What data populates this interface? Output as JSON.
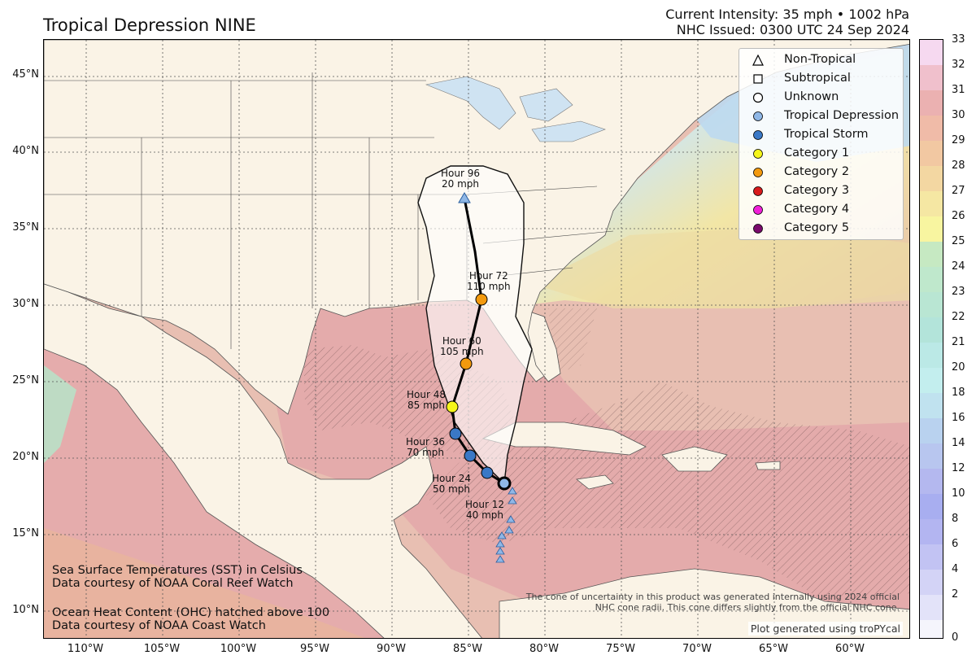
{
  "header": {
    "title": "Tropical Depression NINE",
    "intensity": "Current Intensity: 35 mph • 1002 hPa",
    "issued": "NHC Issued: 0300 UTC 24 Sep 2024"
  },
  "map": {
    "lat_labels": [
      "45°N",
      "40°N",
      "35°N",
      "30°N",
      "25°N",
      "20°N",
      "15°N",
      "10°N"
    ],
    "lon_labels": [
      "110°W",
      "105°W",
      "100°W",
      "95°W",
      "90°W",
      "85°W",
      "80°W",
      "75°W",
      "70°W",
      "65°W",
      "60°W"
    ],
    "land_color": "#faf3e6",
    "ocean_warm_color": "#e7b0ad",
    "track_forecast": [
      {
        "hour": "Hour 12",
        "wind": "40 mph",
        "category": "Tropical Storm"
      },
      {
        "hour": "Hour 24",
        "wind": "50 mph",
        "category": "Tropical Storm"
      },
      {
        "hour": "Hour 36",
        "wind": "70 mph",
        "category": "Tropical Storm"
      },
      {
        "hour": "Hour 48",
        "wind": "85 mph",
        "category": "Category 1"
      },
      {
        "hour": "Hour 60",
        "wind": "105 mph",
        "category": "Category 2"
      },
      {
        "hour": "Hour 72",
        "wind": "110 mph",
        "category": "Category 2"
      },
      {
        "hour": "Hour 96",
        "wind": "20 mph",
        "category": "Non-Tropical"
      }
    ]
  },
  "legend": {
    "items": [
      {
        "label": "Non-Tropical",
        "icon": "triangle-outline-icon",
        "color": "#ffffff"
      },
      {
        "label": "Subtropical",
        "icon": "square-outline-icon",
        "color": "#ffffff"
      },
      {
        "label": "Unknown",
        "icon": "circle-outline-icon",
        "color": "#ffffff"
      },
      {
        "label": "Tropical Depression",
        "icon": "circle-icon",
        "color": "#8fb7e6"
      },
      {
        "label": "Tropical Storm",
        "icon": "circle-icon",
        "color": "#3a78c6"
      },
      {
        "label": "Category 1",
        "icon": "circle-icon",
        "color": "#f5f51a"
      },
      {
        "label": "Category 2",
        "icon": "circle-icon",
        "color": "#f39a0e"
      },
      {
        "label": "Category 3",
        "icon": "circle-icon",
        "color": "#d81b1b"
      },
      {
        "label": "Category 4",
        "icon": "circle-icon",
        "color": "#f020d8"
      },
      {
        "label": "Category 5",
        "icon": "circle-icon",
        "color": "#7a0a6c"
      }
    ]
  },
  "colorbar": {
    "ticks": [
      "33",
      "32",
      "31",
      "30",
      "29",
      "28",
      "27",
      "26",
      "25",
      "24",
      "23",
      "22",
      "21",
      "20",
      "18",
      "16",
      "14",
      "12",
      "10",
      "8",
      "6",
      "4",
      "2",
      "0"
    ]
  },
  "notes": {
    "sst_line1": "Sea Surface Temperatures (SST) in Celsius",
    "sst_line2": "Data courtesy of NOAA Coral Reef Watch",
    "ohc_line1": "Ocean Heat Content (OHC) hatched above 100",
    "ohc_line2": "Data courtesy of NOAA Coast Watch",
    "cone_line1": "The cone of uncertainty in this product was generated internally using 2024 official",
    "cone_line2": "NHC cone radii. This cone differs slightly from the official NHC cone.",
    "credit": "Plot generated using troPYcal"
  }
}
